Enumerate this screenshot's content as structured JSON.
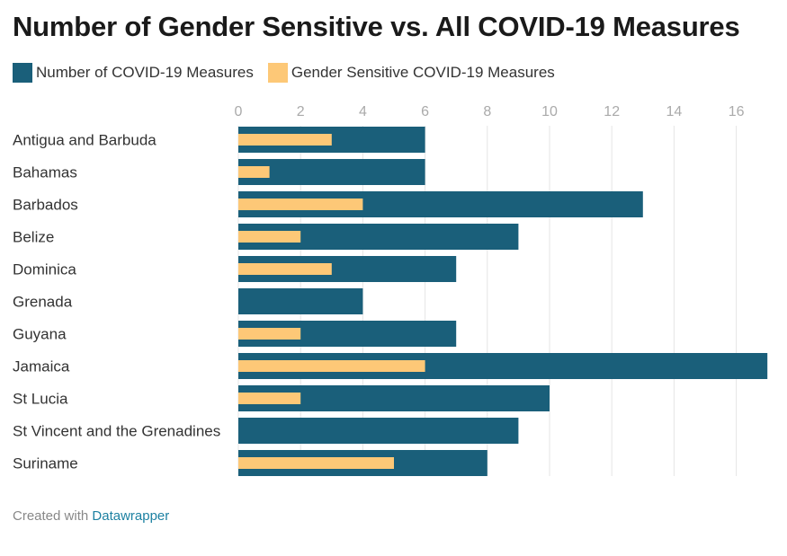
{
  "title": "Number of Gender Sensitive vs. All COVID-19 Measures",
  "footer": {
    "prefix": "Created with",
    "link_label": "Datawrapper"
  },
  "colors": {
    "total": "#1a5f7a",
    "gender": "#fdc877",
    "grid": "#e5e5e5",
    "tick": "#aaaaaa",
    "link": "#1d81a2"
  },
  "chart_data": {
    "type": "bar",
    "orientation": "horizontal",
    "title": "Number of Gender Sensitive vs. All COVID-19 Measures",
    "categories": [
      "Antigua and Barbuda",
      "Bahamas",
      "Barbados",
      "Belize",
      "Dominica",
      "Grenada",
      "Guyana",
      "Jamaica",
      "St Lucia",
      "St Vincent and the Grenadines",
      "Suriname"
    ],
    "series": [
      {
        "name": "Number of COVID-19 Measures",
        "values": [
          6,
          6,
          13,
          9,
          7,
          4,
          7,
          17,
          10,
          9,
          8
        ]
      },
      {
        "name": "Gender Sensitive COVID-19 Measures",
        "values": [
          3,
          1,
          4,
          2,
          3,
          0,
          2,
          6,
          2,
          0,
          5
        ]
      }
    ],
    "xticks": [
      0,
      2,
      4,
      6,
      8,
      10,
      12,
      14,
      16
    ],
    "xlim": [
      0,
      17
    ],
    "grid": true,
    "legend": "top-left"
  }
}
